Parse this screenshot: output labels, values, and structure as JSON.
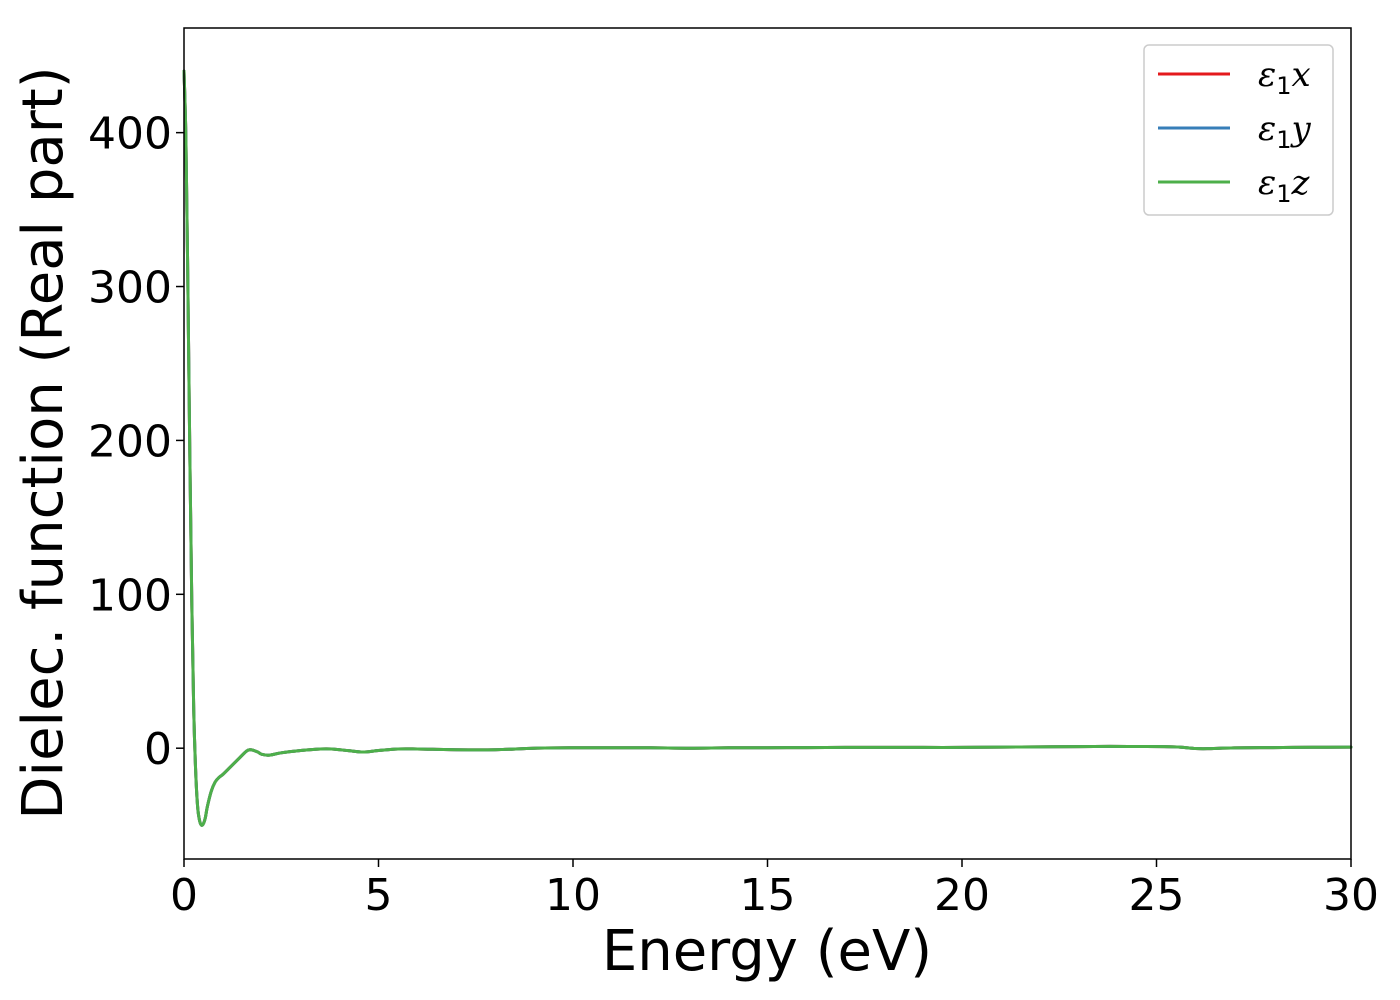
{
  "chart_data": {
    "type": "line",
    "xlabel": "Energy (eV)",
    "ylabel": "Dielec. function (Real part)",
    "xlim": [
      0,
      30
    ],
    "ylim": [
      -72,
      468
    ],
    "xticks": [
      0,
      5,
      10,
      15,
      20,
      25,
      30
    ],
    "yticks": [
      0,
      100,
      200,
      300,
      400
    ],
    "grid": false,
    "legend_position": "top-right",
    "series": [
      {
        "name_base": "ε",
        "name_sub": "1",
        "name_suffix": "x",
        "color": "#e41a1c",
        "x": [
          0,
          0.05,
          0.1,
          0.15,
          0.2,
          0.25,
          0.3,
          0.35,
          0.4,
          0.45,
          0.5,
          0.55,
          0.6,
          0.7,
          0.8,
          0.9,
          1.0,
          1.2,
          1.4,
          1.6,
          1.7,
          1.8,
          1.9,
          2.0,
          2.2,
          2.5,
          3.0,
          3.5,
          3.8,
          4.2,
          4.6,
          5.0,
          5.5,
          6.0,
          7.0,
          8.0,
          9.0,
          10.0,
          11.0,
          12.0,
          13.0,
          14.0,
          15.0,
          16.0,
          17.0,
          18.0,
          19.0,
          20.0,
          21.0,
          22.0,
          23.0,
          23.8,
          24.5,
          25.2,
          25.6,
          26.0,
          26.3,
          27.0,
          28.0,
          29.0,
          30.0
        ],
        "y": [
          440,
          395,
          300,
          190,
          95,
          25,
          -15,
          -38,
          -47,
          -50,
          -49,
          -45,
          -38,
          -28,
          -22,
          -19,
          -17,
          -12,
          -7,
          -2,
          -1,
          -1.5,
          -2.5,
          -4,
          -4.5,
          -3,
          -1.5,
          -0.5,
          -0.5,
          -1.5,
          -2.5,
          -1.5,
          -0.5,
          -0.5,
          -1,
          -1,
          0,
          0.3,
          0.3,
          0.3,
          0,
          0.3,
          0.3,
          0.4,
          0.5,
          0.5,
          0.5,
          0.5,
          0.7,
          0.9,
          1.0,
          1.2,
          1.1,
          1.0,
          0.7,
          -0.2,
          -0.3,
          0.2,
          0.4,
          0.6,
          0.7
        ]
      },
      {
        "name_base": "ε",
        "name_sub": "1",
        "name_suffix": "y",
        "color": "#377eb8",
        "x": [
          0,
          0.05,
          0.1,
          0.15,
          0.2,
          0.25,
          0.3,
          0.35,
          0.4,
          0.45,
          0.5,
          0.55,
          0.6,
          0.7,
          0.8,
          0.9,
          1.0,
          1.2,
          1.4,
          1.6,
          1.7,
          1.8,
          1.9,
          2.0,
          2.2,
          2.5,
          3.0,
          3.5,
          3.8,
          4.2,
          4.6,
          5.0,
          5.5,
          6.0,
          7.0,
          8.0,
          9.0,
          10.0,
          11.0,
          12.0,
          13.0,
          14.0,
          15.0,
          16.0,
          17.0,
          18.0,
          19.0,
          20.0,
          21.0,
          22.0,
          23.0,
          23.8,
          24.5,
          25.2,
          25.6,
          26.0,
          26.3,
          27.0,
          28.0,
          29.0,
          30.0
        ],
        "y": [
          440,
          395,
          300,
          190,
          95,
          25,
          -15,
          -38,
          -47,
          -50,
          -49,
          -45,
          -38,
          -28,
          -22,
          -19,
          -17,
          -12,
          -7,
          -2,
          -1,
          -1.5,
          -2.5,
          -4,
          -4.5,
          -3,
          -1.5,
          -0.5,
          -0.5,
          -1.5,
          -2.5,
          -1.5,
          -0.5,
          -0.5,
          -1,
          -1,
          0,
          0.3,
          0.3,
          0.3,
          0,
          0.3,
          0.3,
          0.4,
          0.5,
          0.5,
          0.5,
          0.5,
          0.7,
          0.9,
          1.0,
          1.2,
          1.1,
          1.0,
          0.7,
          -0.2,
          -0.3,
          0.2,
          0.4,
          0.6,
          0.7
        ]
      },
      {
        "name_base": "ε",
        "name_sub": "1",
        "name_suffix": "z",
        "color": "#4daf4a",
        "x": [
          0,
          0.05,
          0.1,
          0.15,
          0.2,
          0.25,
          0.3,
          0.35,
          0.4,
          0.45,
          0.5,
          0.55,
          0.6,
          0.7,
          0.8,
          0.9,
          1.0,
          1.2,
          1.4,
          1.6,
          1.7,
          1.8,
          1.9,
          2.0,
          2.2,
          2.5,
          3.0,
          3.5,
          3.8,
          4.2,
          4.6,
          5.0,
          5.5,
          6.0,
          7.0,
          8.0,
          9.0,
          10.0,
          11.0,
          12.0,
          13.0,
          14.0,
          15.0,
          16.0,
          17.0,
          18.0,
          19.0,
          20.0,
          21.0,
          22.0,
          23.0,
          23.8,
          24.5,
          25.2,
          25.6,
          26.0,
          26.3,
          27.0,
          28.0,
          29.0,
          30.0
        ],
        "y": [
          440,
          395,
          300,
          190,
          95,
          25,
          -15,
          -38,
          -47,
          -50,
          -49,
          -45,
          -38,
          -28,
          -22,
          -19,
          -17,
          -12,
          -7,
          -2,
          -1,
          -1.5,
          -2.5,
          -4,
          -4.5,
          -3,
          -1.5,
          -0.5,
          -0.5,
          -1.5,
          -2.5,
          -1.5,
          -0.5,
          -0.5,
          -1,
          -1,
          0,
          0.3,
          0.3,
          0.3,
          0,
          0.3,
          0.3,
          0.4,
          0.5,
          0.5,
          0.5,
          0.5,
          0.7,
          0.9,
          1.0,
          1.2,
          1.1,
          1.0,
          0.7,
          -0.2,
          -0.3,
          0.2,
          0.4,
          0.6,
          0.7
        ]
      }
    ]
  }
}
